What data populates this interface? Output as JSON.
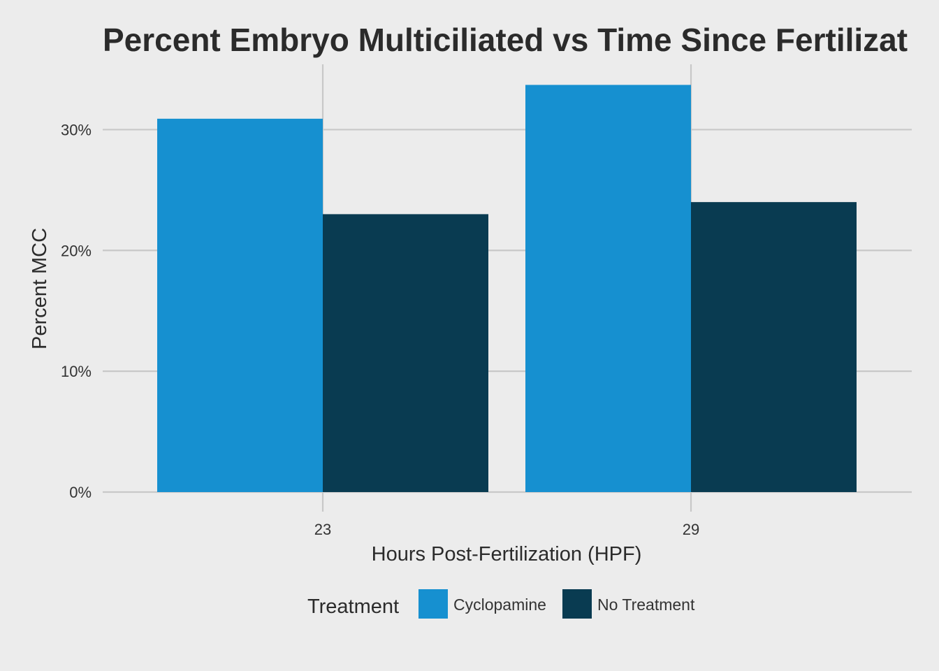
{
  "chart_data": {
    "type": "bar",
    "title": "Percent Embryo Multiciliated vs Time Since Fertilizat",
    "xlabel": "Hours Post-Fertilization (HPF)",
    "ylabel": "Percent MCC",
    "categories": [
      "23",
      "29"
    ],
    "series": [
      {
        "name": "Cyclopamine",
        "values": [
          0.309,
          0.337
        ],
        "color": "#1690d0"
      },
      {
        "name": "No Treatment",
        "values": [
          0.23,
          0.24
        ],
        "color": "#093b51"
      }
    ],
    "ylim": [
      0,
      0.35
    ],
    "y_ticks": [
      0,
      0.1,
      0.2,
      0.3
    ],
    "y_tick_labels": [
      "0%",
      "10%",
      "20%",
      "30%"
    ],
    "grid": true,
    "legend": {
      "title": "Treatment",
      "placement": "bottom",
      "items": [
        "Cyclopamine",
        "No Treatment"
      ]
    },
    "background": "#ececec",
    "grid_color": "#c8c8c8"
  }
}
